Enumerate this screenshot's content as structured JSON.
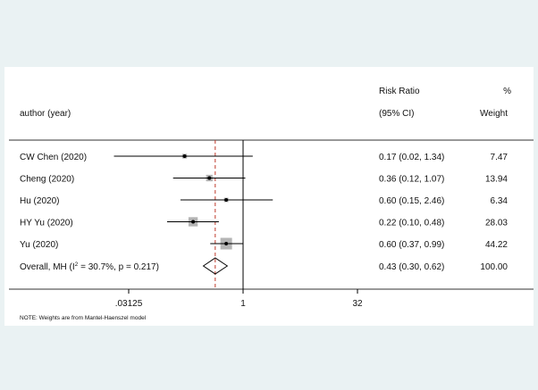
{
  "chart_data": {
    "type": "forest",
    "header": {
      "col1": "author (year)",
      "effect_top": "Risk Ratio",
      "effect_bottom": "(95% CI)",
      "weight_top": "%",
      "weight_bottom": "Weight"
    },
    "x_scale": "log2",
    "xlim": [
      0.015625,
      64
    ],
    "x_ticks": [
      0.03125,
      1,
      32
    ],
    "x_tick_labels": [
      ".03125",
      "1",
      "32"
    ],
    "reference_line": 1,
    "studies": [
      {
        "label": "CW Chen (2020)",
        "rr": 0.17,
        "lo": 0.02,
        "hi": 1.34,
        "ci_text": "0.17 (0.02, 1.34)",
        "weight": 7.47,
        "weight_text": "7.47"
      },
      {
        "label": "Cheng (2020)",
        "rr": 0.36,
        "lo": 0.12,
        "hi": 1.07,
        "ci_text": "0.36 (0.12, 1.07)",
        "weight": 13.94,
        "weight_text": "13.94"
      },
      {
        "label": "Hu (2020)",
        "rr": 0.6,
        "lo": 0.15,
        "hi": 2.46,
        "ci_text": "0.60 (0.15, 2.46)",
        "weight": 6.34,
        "weight_text": "6.34"
      },
      {
        "label": "HY Yu (2020)",
        "rr": 0.22,
        "lo": 0.1,
        "hi": 0.48,
        "ci_text": "0.22 (0.10, 0.48)",
        "weight": 28.03,
        "weight_text": "28.03"
      },
      {
        "label": "Yu (2020)",
        "rr": 0.6,
        "lo": 0.37,
        "hi": 0.99,
        "ci_text": "0.60 (0.37, 0.99)",
        "weight": 44.22,
        "weight_text": "44.22"
      }
    ],
    "overall": {
      "label_prefix": "Overall, MH (I",
      "label_sup": "2",
      "label_suffix": " = 30.7%, p = 0.217)",
      "rr": 0.43,
      "lo": 0.3,
      "hi": 0.62,
      "ci_text": "0.43 (0.30, 0.62)",
      "weight_text": "100.00"
    },
    "note": "NOTE: Weights are from Mantel-Haenszel model",
    "colors": {
      "reference": "#000000",
      "overall_line": "#c0392b",
      "weight_box": "#b5b5b5"
    }
  }
}
